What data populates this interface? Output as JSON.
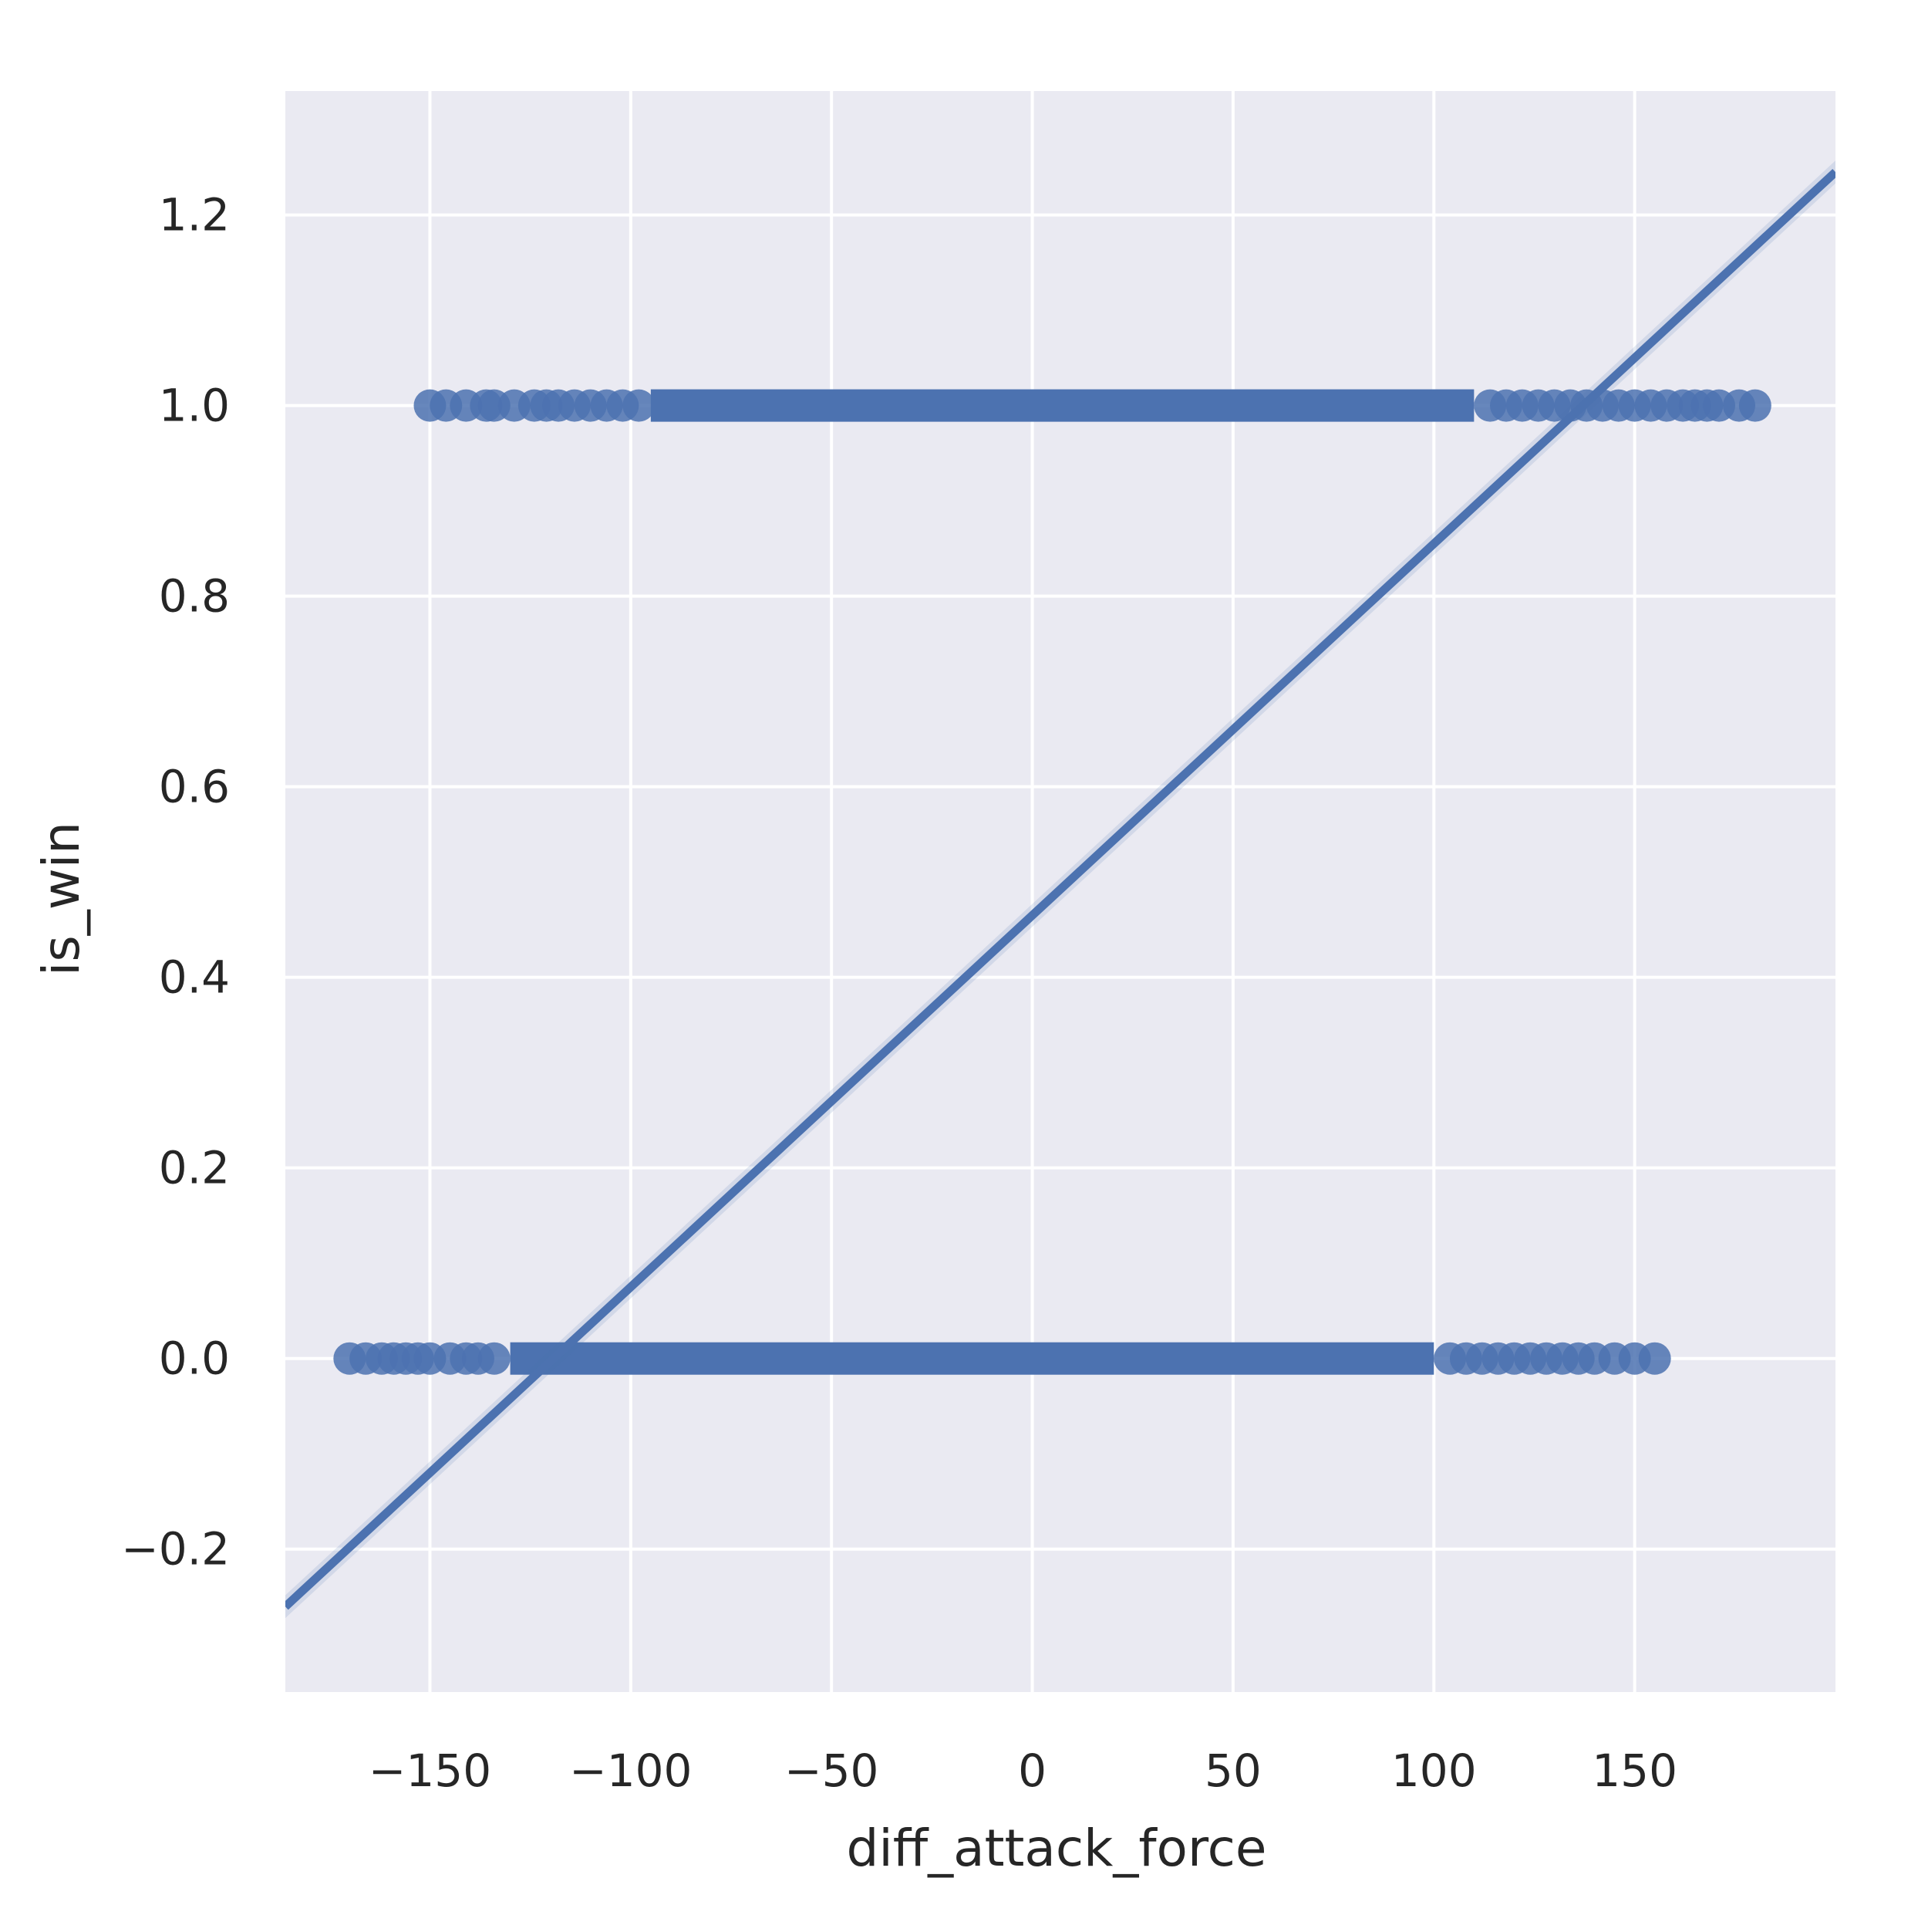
{
  "chart_data": {
    "type": "scatter",
    "title": "",
    "xlabel": "diff_attack_force",
    "ylabel": "is_win",
    "xlim": [
      -186,
      200
    ],
    "ylim": [
      -0.35,
      1.33
    ],
    "grid": true,
    "style": {
      "background_color": "#EAEAF2",
      "grid_color": "#FFFFFF",
      "series_color": "#4C72B0",
      "text_color": "#262626"
    },
    "x_ticks": [
      -150,
      -100,
      -50,
      0,
      50,
      100,
      150
    ],
    "x_tick_labels": [
      "−150",
      "−100",
      "−50",
      "0",
      "50",
      "100",
      "150"
    ],
    "y_ticks": [
      -0.2,
      0.0,
      0.2,
      0.4,
      0.6,
      0.8,
      1.0,
      1.2
    ],
    "y_tick_labels": [
      "−0.2",
      "0.0",
      "0.2",
      "0.4",
      "0.6",
      "0.8",
      "1.0",
      "1.2"
    ],
    "series": [
      {
        "kind": "scatter",
        "y": 1.0,
        "x_dense_range": [
          -95,
          110
        ],
        "x_sparse": [
          -150,
          -146,
          -141,
          -136,
          -134,
          -129,
          -124,
          -121,
          -118,
          -114,
          -110,
          -106,
          -102,
          -98,
          114,
          118,
          122,
          126,
          130,
          134,
          138,
          142,
          146,
          150,
          154,
          158,
          162,
          165,
          168,
          171,
          176,
          180
        ]
      },
      {
        "kind": "scatter",
        "y": 0.0,
        "x_dense_range": [
          -130,
          100
        ],
        "x_sparse": [
          -170,
          -166,
          -162,
          -159,
          -156,
          -153,
          -150,
          -145,
          -141,
          -138,
          -134,
          104,
          108,
          112,
          116,
          120,
          124,
          128,
          132,
          136,
          140,
          145,
          150,
          155
        ]
      },
      {
        "kind": "regression_line",
        "slope": 0.0039,
        "intercept": 0.465
      }
    ]
  }
}
